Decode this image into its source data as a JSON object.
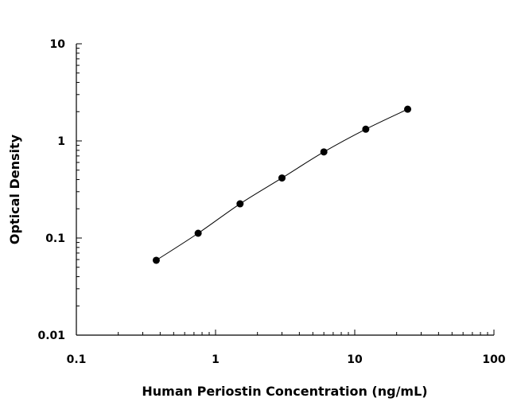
{
  "chart_data": {
    "type": "scatter",
    "title": "",
    "xlabel": "Human Periostin Concentration (ng/mL)",
    "ylabel": "Optical Density",
    "x_scale": "log",
    "y_scale": "log",
    "xlim": [
      0.1,
      100
    ],
    "ylim": [
      0.01,
      10
    ],
    "x_ticks": [
      "0.1",
      "1",
      "10",
      "100"
    ],
    "y_ticks": [
      "0.01",
      "0.1",
      "1",
      "10"
    ],
    "grid": false,
    "legend": "none",
    "series": [
      {
        "x": [
          0.375,
          0.75,
          1.5,
          3,
          6,
          12,
          24
        ],
        "y": [
          0.059,
          0.112,
          0.225,
          0.415,
          0.77,
          1.32,
          2.12
        ],
        "marker": "circle",
        "fit_line": true
      }
    ],
    "colors": {
      "points": "#000000",
      "line": "#000000",
      "axes": "#000000"
    }
  }
}
